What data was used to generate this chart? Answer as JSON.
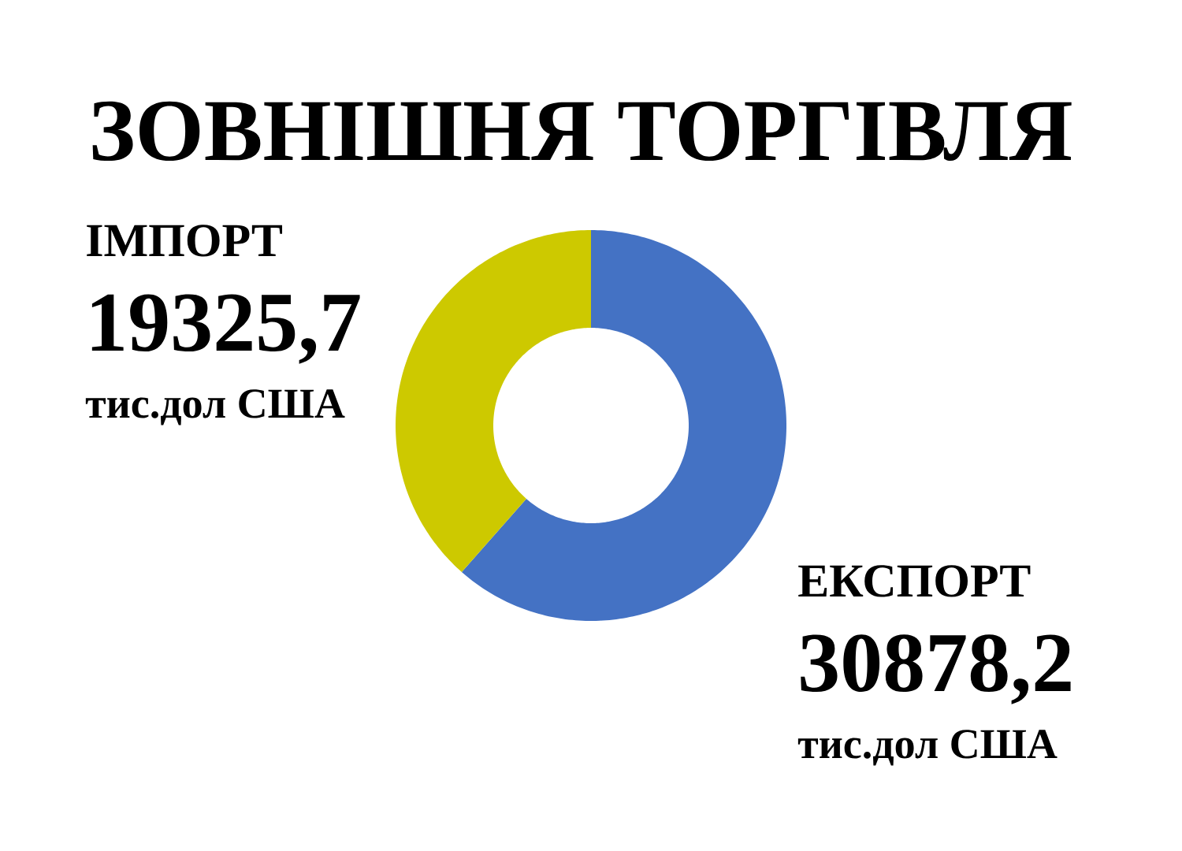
{
  "chart_data": {
    "type": "donut",
    "title": "ЗОВНІШНЯ ТОРГІВЛЯ",
    "categories": [
      "ЕКСПОРТ",
      "ІМПОРТ"
    ],
    "values": [
      30878.2,
      19325.7
    ],
    "value_labels": [
      "30878,2",
      "19325,7"
    ],
    "colors": [
      "#4472c4",
      "#cdc900"
    ],
    "annotations": [
      "тис.дол США",
      "тис.дол США"
    ]
  }
}
